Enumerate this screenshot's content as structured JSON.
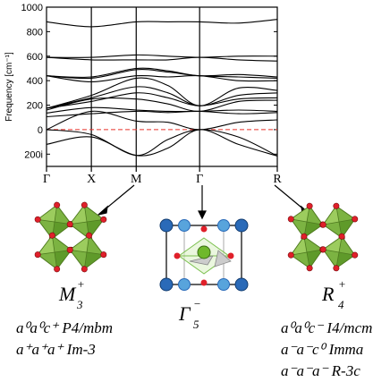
{
  "chart_data": {
    "type": "line",
    "ylabel": "Frequency [cm⁻¹]",
    "ylim": [
      -300,
      1000
    ],
    "yticks": [
      {
        "value": 1000,
        "label": "1000"
      },
      {
        "value": 800,
        "label": "800"
      },
      {
        "value": 600,
        "label": "600"
      },
      {
        "value": 400,
        "label": "400"
      },
      {
        "value": 200,
        "label": "200"
      },
      {
        "value": 0,
        "label": "0"
      },
      {
        "value": -200,
        "label": "200i"
      }
    ],
    "kpoints": [
      {
        "label": "Γ",
        "pos": 0
      },
      {
        "label": "X",
        "pos": 0.5
      },
      {
        "label": "M",
        "pos": 1.0
      },
      {
        "label": "Γ",
        "pos": 1.707
      },
      {
        "label": "R",
        "pos": 2.573
      }
    ],
    "zero_line": {
      "value": 0,
      "color": "#e8322a",
      "style": "dashed"
    },
    "x": [
      0,
      0.5,
      1.0,
      1.354,
      1.707,
      2.14,
      2.573
    ],
    "series": [
      {
        "values": [
          -120,
          -60,
          -210,
          -150,
          0,
          -120,
          -215
        ]
      },
      {
        "values": [
          0,
          -40,
          -210,
          -80,
          0,
          -60,
          -215
        ]
      },
      {
        "values": [
          0,
          150,
          70,
          60,
          0,
          60,
          80
        ]
      },
      {
        "values": [
          105,
          130,
          150,
          140,
          150,
          130,
          140
        ]
      },
      {
        "values": [
          135,
          180,
          160,
          150,
          150,
          160,
          150
        ]
      },
      {
        "values": [
          160,
          250,
          250,
          210,
          150,
          230,
          240
        ]
      },
      {
        "values": [
          175,
          230,
          300,
          260,
          195,
          250,
          260
        ]
      },
      {
        "values": [
          175,
          260,
          350,
          300,
          195,
          280,
          300
        ]
      },
      {
        "values": [
          175,
          280,
          420,
          360,
          195,
          340,
          320
        ]
      },
      {
        "values": [
          440,
          390,
          440,
          430,
          440,
          400,
          400
        ]
      },
      {
        "values": [
          440,
          420,
          490,
          470,
          440,
          430,
          420
        ]
      },
      {
        "values": [
          440,
          430,
          500,
          480,
          440,
          450,
          430
        ]
      },
      {
        "values": [
          590,
          570,
          570,
          570,
          590,
          570,
          560
        ]
      },
      {
        "values": [
          590,
          590,
          610,
          600,
          590,
          600,
          600
        ]
      },
      {
        "values": [
          880,
          840,
          880,
          880,
          880,
          870,
          900
        ]
      }
    ]
  },
  "modes": [
    {
      "symbol": "M",
      "sub": "3",
      "sup": "+",
      "space_groups": [
        {
          "glazer": "a⁰a⁰c⁺",
          "group": "P4/mbm"
        },
        {
          "glazer": "a⁺a⁺a⁺",
          "group": "Im-3"
        }
      ]
    },
    {
      "symbol": "Γ",
      "sub": "5",
      "sup": "−",
      "space_groups": []
    },
    {
      "symbol": "R",
      "sub": "4",
      "sup": "+",
      "space_groups": [
        {
          "glazer": "a⁰a⁰c⁻",
          "group": "I4/mcm"
        },
        {
          "glazer": "a⁻a⁻c⁰",
          "group": "Imma"
        },
        {
          "glazer": "a⁻a⁻a⁻",
          "group": "R-3c"
        }
      ]
    }
  ],
  "colors": {
    "octahedron": "#7cb342",
    "octahedron_dark": "#4e7a1f",
    "oxygen": "#e0202a",
    "cation": "#2a6ab8",
    "cation_light": "#58a4dc",
    "cage": "#a8d87c"
  }
}
